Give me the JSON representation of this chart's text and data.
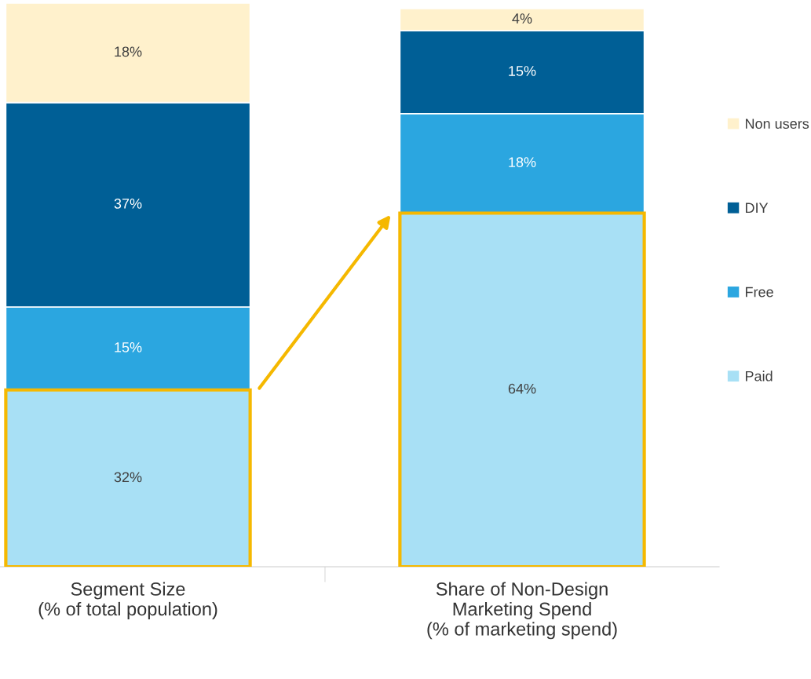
{
  "chart_data": {
    "type": "bar",
    "stacked": true,
    "categories": [
      "Segment Size\n(% of total population)",
      "Share of Non-Design\nMarketing Spend\n(% of marketing spend)"
    ],
    "series": [
      {
        "name": "Paid",
        "color": "#a8e0f5",
        "values": [
          32,
          64
        ],
        "value_labels": [
          "32%",
          "64%"
        ]
      },
      {
        "name": "Free",
        "color": "#2ba6e0",
        "values": [
          15,
          18
        ],
        "value_labels": [
          "15%",
          "18%"
        ]
      },
      {
        "name": "DIY",
        "color": "#005f96",
        "values": [
          37,
          15
        ],
        "value_labels": [
          "37%",
          "15%"
        ]
      },
      {
        "name": "Non users",
        "color": "#fff1cc",
        "values": [
          18,
          4
        ],
        "value_labels": [
          "18%",
          "4%"
        ]
      }
    ],
    "legend": "right",
    "grid": false
  }
}
